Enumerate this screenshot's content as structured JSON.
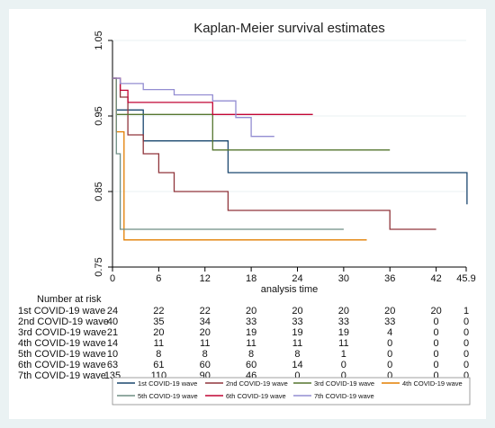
{
  "chart_data": {
    "type": "line",
    "title": "Kaplan-Meier survival estimates",
    "xlabel": "analysis time",
    "ylabel": "",
    "xlim": [
      0,
      45.9
    ],
    "ylim": [
      0.75,
      1.05
    ],
    "x_ticks": [
      "0",
      "6",
      "12",
      "18",
      "24",
      "30",
      "36",
      "42",
      "45.9"
    ],
    "x_tick_values": [
      0,
      6,
      12,
      18,
      24,
      30,
      36,
      42,
      45.9
    ],
    "y_ticks": [
      "0.75",
      "0.85",
      "0.95",
      "1.05"
    ],
    "y_tick_values": [
      0.75,
      0.85,
      0.95,
      1.05
    ],
    "grid": true,
    "legend_position": "bottom",
    "series": [
      {
        "name": "1st COVID-19 wave",
        "color": "#1a476f",
        "x": [
          0,
          0.5,
          1,
          3,
          4,
          13,
          15,
          46
        ],
        "y": [
          1.0,
          0.958,
          0.958,
          0.958,
          0.917,
          0.917,
          0.875,
          0.833
        ]
      },
      {
        "name": "2nd COVID-19 wave",
        "color": "#90353b",
        "x": [
          0,
          1,
          2,
          4,
          6,
          8,
          15,
          36,
          42
        ],
        "y": [
          1.0,
          0.975,
          0.925,
          0.9,
          0.875,
          0.85,
          0.825,
          0.8,
          0.8
        ]
      },
      {
        "name": "3rd COVID-19 wave",
        "color": "#55752f",
        "x": [
          0,
          0.5,
          1,
          13,
          36
        ],
        "y": [
          1.0,
          0.952,
          0.952,
          0.905,
          0.905
        ]
      },
      {
        "name": "4th COVID-19 wave",
        "color": "#e37e00",
        "x": [
          0,
          0.5,
          1.5,
          33
        ],
        "y": [
          1.0,
          0.929,
          0.786,
          0.786
        ]
      },
      {
        "name": "5th COVID-19 wave",
        "color": "#6e8e84",
        "x": [
          0,
          0.5,
          1,
          30
        ],
        "y": [
          1.0,
          0.9,
          0.8,
          0.8
        ]
      },
      {
        "name": "6th COVID-19 wave",
        "color": "#c10534",
        "x": [
          0,
          1,
          2,
          13,
          26
        ],
        "y": [
          1.0,
          0.984,
          0.968,
          0.952,
          0.952
        ]
      },
      {
        "name": "7th COVID-19 wave",
        "color": "#938dd2",
        "x": [
          0,
          1,
          4,
          8,
          13,
          16,
          18,
          21
        ],
        "y": [
          1.0,
          0.993,
          0.985,
          0.978,
          0.97,
          0.948,
          0.923,
          0.923
        ]
      }
    ],
    "number_at_risk": {
      "title": "Number at risk",
      "rows": [
        {
          "label": "1st COVID-19 wave",
          "values": [
            "24",
            "22",
            "22",
            "20",
            "20",
            "20",
            "20",
            "20",
            "1"
          ]
        },
        {
          "label": "2nd COVID-19 wave",
          "values": [
            "40",
            "35",
            "34",
            "33",
            "33",
            "33",
            "33",
            "0",
            "0"
          ]
        },
        {
          "label": "3rd COVID-19 wave",
          "values": [
            "21",
            "20",
            "20",
            "19",
            "19",
            "19",
            "4",
            "0",
            "0"
          ]
        },
        {
          "label": "4th COVID-19 wave",
          "values": [
            "14",
            "11",
            "11",
            "11",
            "11",
            "11",
            "0",
            "0",
            "0"
          ]
        },
        {
          "label": "5th COVID-19 wave",
          "values": [
            "10",
            "8",
            "8",
            "8",
            "8",
            "1",
            "0",
            "0",
            "0"
          ]
        },
        {
          "label": "6th COVID-19 wave",
          "values": [
            "63",
            "61",
            "60",
            "60",
            "14",
            "0",
            "0",
            "0",
            "0"
          ]
        },
        {
          "label": "7th COVID-19 wave",
          "values": [
            "135",
            "110",
            "90",
            "46",
            "0",
            "0",
            "0",
            "0",
            "0"
          ]
        }
      ]
    }
  }
}
